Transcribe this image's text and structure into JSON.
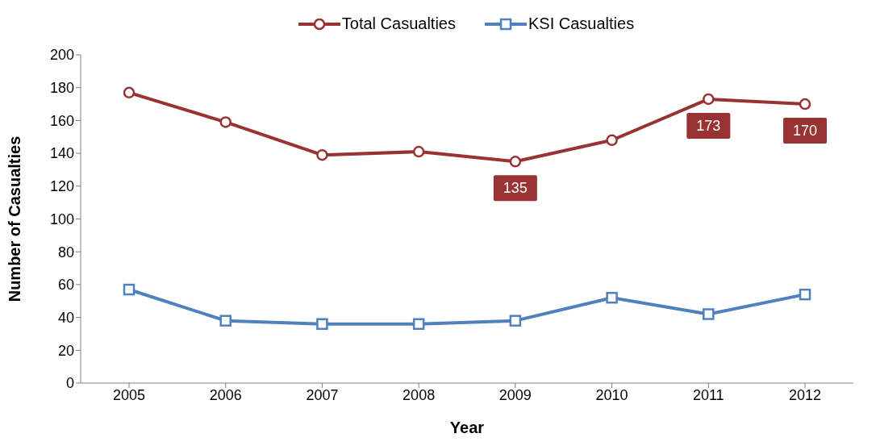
{
  "chart_data": {
    "type": "line",
    "xlabel": "Year",
    "ylabel": "Number of Casualties",
    "categories": [
      "2005",
      "2006",
      "2007",
      "2008",
      "2009",
      "2010",
      "2011",
      "2012"
    ],
    "series": [
      {
        "name": "Total Casualties",
        "color": "#993333",
        "marker": "circle",
        "values": [
          177,
          159,
          139,
          141,
          135,
          148,
          173,
          170
        ],
        "value_labels": [
          null,
          null,
          null,
          null,
          "135",
          null,
          "173",
          "170"
        ]
      },
      {
        "name": "KSI Casualties",
        "color": "#4f81bd",
        "marker": "square",
        "values": [
          57,
          38,
          36,
          36,
          38,
          52,
          42,
          54
        ]
      }
    ],
    "ylim": [
      0,
      200
    ],
    "yticks": [
      0,
      20,
      40,
      60,
      80,
      100,
      120,
      140,
      160,
      180,
      200
    ],
    "grid": false,
    "legend": "top",
    "line_style": "solid"
  }
}
